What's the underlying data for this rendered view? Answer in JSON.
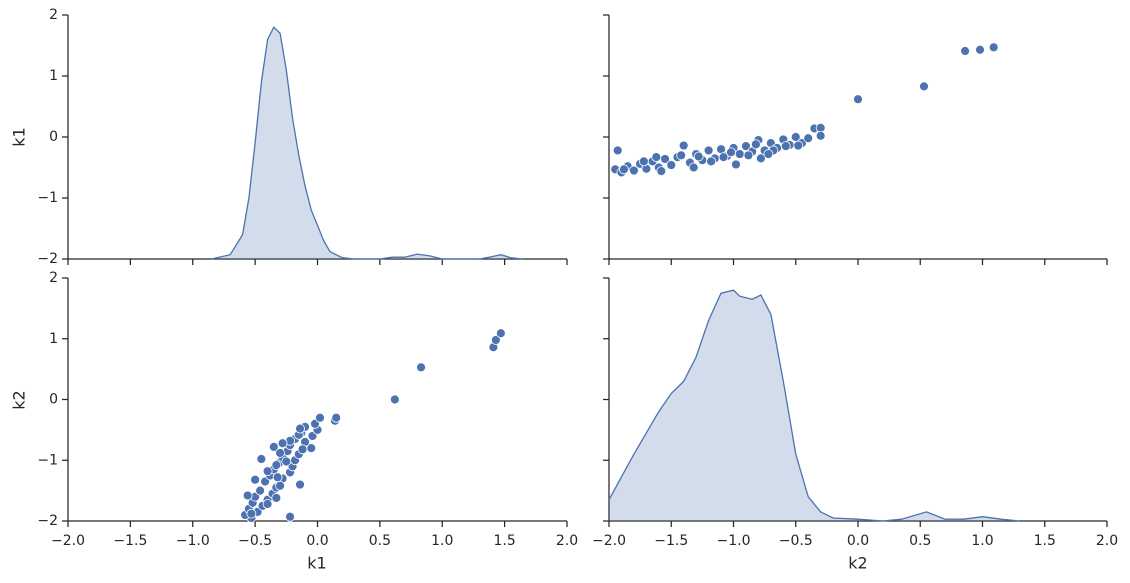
{
  "chart_data": {
    "type": "pairplot",
    "vars": [
      "k1",
      "k2"
    ],
    "color": "#4c72b0",
    "xlim": [
      -2,
      2
    ],
    "ylim": [
      -2,
      2
    ],
    "xticks": [
      {
        "value": -2,
        "label": "−2.0"
      },
      {
        "value": -1.5,
        "label": "−1.5"
      },
      {
        "value": -1,
        "label": "−1.0"
      },
      {
        "value": -0.5,
        "label": "−0.5"
      },
      {
        "value": 0,
        "label": "0.0"
      },
      {
        "value": 0.5,
        "label": "0.5"
      },
      {
        "value": 1,
        "label": "1.0"
      },
      {
        "value": 1.5,
        "label": "1.5"
      },
      {
        "value": 2,
        "label": "2.0"
      }
    ],
    "yticks": [
      {
        "value": -2,
        "label": "−2"
      },
      {
        "value": -1,
        "label": "−1"
      },
      0,
      1,
      2
    ],
    "data": {
      "k1": [
        -0.53,
        -0.58,
        -0.48,
        -0.55,
        -0.44,
        -0.52,
        -0.4,
        -0.5,
        -0.36,
        -0.46,
        -0.33,
        -0.14,
        -0.42,
        -0.28,
        -0.38,
        -0.22,
        -0.35,
        -0.2,
        -0.31,
        -0.18,
        -0.28,
        -0.15,
        -0.24,
        -0.05,
        -0.22,
        -0.1,
        -0.18,
        -0.04,
        -0.13,
        0.0,
        -0.1,
        -0.02,
        0.14,
        0.15,
        -0.53,
        -0.4,
        -0.56,
        -0.3,
        -0.5,
        -0.4,
        -0.33,
        -0.45,
        -0.3,
        -0.35,
        -0.22,
        -0.15,
        -0.14,
        -0.33,
        -0.32,
        -0.25,
        -0.12,
        -0.28,
        0.02,
        -0.22,
        0.62,
        0.83,
        1.41,
        1.43,
        1.47
      ],
      "k2": [
        -1.95,
        -1.9,
        -1.85,
        -1.8,
        -1.75,
        -1.7,
        -1.65,
        -1.6,
        -1.55,
        -1.5,
        -1.45,
        -1.4,
        -1.35,
        -1.3,
        -1.25,
        -1.2,
        -1.15,
        -1.1,
        -1.05,
        -1.0,
        -0.95,
        -0.9,
        -0.85,
        -0.8,
        -0.75,
        -0.7,
        -0.65,
        -0.6,
        -0.55,
        -0.5,
        -0.45,
        -0.4,
        -0.35,
        -0.3,
        -1.88,
        -1.72,
        -1.58,
        -1.42,
        -1.32,
        -1.18,
        -1.08,
        -0.98,
        -0.88,
        -0.78,
        -0.68,
        -0.58,
        -0.48,
        -1.62,
        -1.28,
        -1.02,
        -0.82,
        -0.72,
        -0.3,
        -1.93,
        0.0,
        0.53,
        0.86,
        0.98,
        1.09
      ]
    },
    "kde": [
      {
        "x": [
          -0.85,
          -0.7,
          -0.6,
          -0.55,
          -0.5,
          -0.45,
          -0.4,
          -0.35,
          -0.3,
          -0.25,
          -0.2,
          -0.15,
          -0.1,
          -0.05,
          0,
          0.05,
          0.1,
          0.2,
          0.3,
          0.5,
          0.6,
          0.7,
          0.8,
          0.9,
          1.0,
          1.3,
          1.4,
          1.47,
          1.55,
          1.65
        ],
        "values": [
          -2,
          -1.93,
          -1.6,
          -1.0,
          -0.1,
          0.9,
          1.6,
          1.8,
          1.7,
          1.1,
          0.3,
          -0.3,
          -0.8,
          -1.2,
          -1.45,
          -1.7,
          -1.88,
          -1.98,
          -2,
          -2,
          -1.97,
          -1.97,
          -1.92,
          -1.95,
          -2,
          -2,
          -1.96,
          -1.93,
          -1.98,
          -2
        ]
      },
      {
        "x": [
          -2,
          -1.8,
          -1.6,
          -1.5,
          -1.4,
          -1.3,
          -1.2,
          -1.1,
          -1.0,
          -0.95,
          -0.85,
          -0.78,
          -0.7,
          -0.6,
          -0.5,
          -0.4,
          -0.3,
          -0.2,
          0,
          0.2,
          0.35,
          0.55,
          0.7,
          0.85,
          1.0,
          1.15,
          1.3
        ],
        "values": [
          -1.65,
          -0.9,
          -0.2,
          0.1,
          0.3,
          0.7,
          1.3,
          1.75,
          1.8,
          1.7,
          1.65,
          1.72,
          1.4,
          0.3,
          -0.9,
          -1.6,
          -1.85,
          -1.95,
          -1.97,
          -2,
          -1.97,
          -1.85,
          -1.97,
          -1.97,
          -1.93,
          -1.97,
          -2
        ]
      }
    ]
  }
}
